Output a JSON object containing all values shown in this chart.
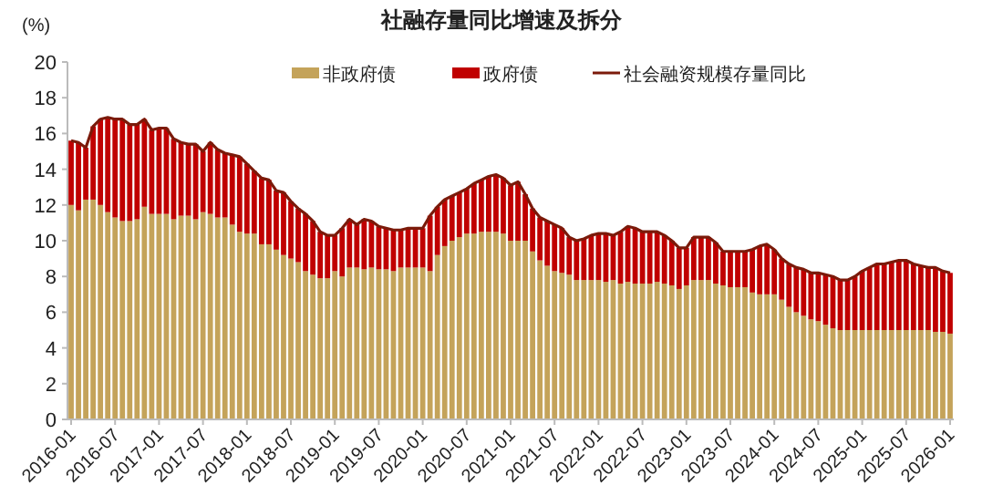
{
  "chart_data": {
    "type": "bar",
    "title": "社融存量同比增速及拆分",
    "ylabel": "(%)",
    "stacked": true,
    "legend": "top",
    "ylim": [
      0,
      20
    ],
    "yticks": [
      0,
      2,
      4,
      6,
      8,
      10,
      12,
      14,
      16,
      18,
      20
    ],
    "categories": [
      "2016-01",
      null,
      null,
      null,
      null,
      null,
      "2016-07",
      null,
      null,
      null,
      null,
      null,
      "2017-01",
      null,
      null,
      null,
      null,
      null,
      "2017-07",
      null,
      null,
      null,
      null,
      null,
      "2018-01",
      null,
      null,
      null,
      null,
      null,
      "2018-07",
      null,
      null,
      null,
      null,
      null,
      "2019-01",
      null,
      null,
      null,
      null,
      null,
      "2019-07",
      null,
      null,
      null,
      null,
      null,
      "2020-01",
      null,
      null,
      null,
      null,
      null,
      "2020-07",
      null,
      null,
      null,
      null,
      null,
      "2021-01",
      null,
      null,
      null,
      null,
      null,
      "2021-07",
      null,
      null,
      null,
      null,
      null,
      "2022-01",
      null,
      null,
      null,
      null,
      null,
      "2022-07",
      null,
      null,
      null,
      null,
      null,
      "2023-01",
      null,
      null,
      null,
      null,
      null,
      "2023-07",
      null,
      null,
      null,
      null,
      null,
      "2024-01",
      null,
      null,
      null,
      null,
      null,
      "2024-07",
      null,
      null,
      null,
      null,
      null,
      "2025-01",
      null,
      null,
      null,
      null,
      null,
      "2025-07",
      null,
      null,
      null,
      null,
      null,
      "2026-01"
    ],
    "series": [
      {
        "name": "非政府债",
        "color": "#c4a35a",
        "values": [
          12.0,
          11.7,
          12.3,
          12.3,
          12.0,
          11.6,
          11.3,
          11.1,
          11.1,
          11.2,
          11.9,
          11.5,
          11.5,
          11.5,
          11.2,
          11.4,
          11.4,
          11.2,
          11.6,
          11.5,
          11.3,
          11.3,
          10.9,
          10.5,
          10.4,
          10.4,
          9.8,
          9.8,
          9.5,
          9.2,
          9.0,
          8.8,
          8.3,
          8.1,
          7.9,
          7.9,
          8.3,
          8.0,
          8.5,
          8.5,
          8.4,
          8.5,
          8.4,
          8.4,
          8.3,
          8.5,
          8.5,
          8.5,
          8.5,
          8.3,
          9.2,
          9.7,
          10.0,
          10.2,
          10.4,
          10.4,
          10.5,
          10.5,
          10.5,
          10.4,
          10.0,
          10.0,
          10.0,
          9.4,
          8.9,
          8.6,
          8.3,
          8.2,
          8.1,
          7.8,
          7.8,
          7.8,
          7.8,
          7.7,
          7.8,
          7.6,
          7.7,
          7.6,
          7.6,
          7.6,
          7.7,
          7.6,
          7.5,
          7.3,
          7.5,
          7.8,
          7.8,
          7.8,
          7.6,
          7.5,
          7.4,
          7.4,
          7.4,
          7.1,
          7.0,
          7.0,
          7.0,
          6.7,
          6.3,
          6.0,
          5.8,
          5.6,
          5.5,
          5.3,
          5.1,
          5.0,
          5.0,
          5.0,
          5.0,
          5.0,
          5.0,
          5.0,
          5.0,
          5.0,
          5.0,
          5.0,
          5.0,
          5.0,
          4.9,
          4.9,
          4.8
        ]
      },
      {
        "name": "政府债",
        "color": "#c00000",
        "values": [
          3.6,
          3.8,
          2.9,
          4.1,
          4.8,
          5.3,
          5.5,
          5.7,
          5.4,
          5.3,
          4.9,
          4.7,
          4.8,
          4.8,
          4.5,
          4.1,
          4.0,
          4.2,
          3.4,
          4.0,
          3.8,
          3.6,
          3.9,
          4.2,
          3.9,
          3.5,
          3.7,
          3.6,
          3.3,
          3.5,
          3.2,
          3.0,
          3.2,
          3.0,
          2.6,
          2.4,
          2.0,
          2.7,
          2.7,
          2.4,
          2.8,
          2.6,
          2.4,
          2.3,
          2.3,
          2.1,
          2.2,
          2.2,
          2.2,
          3.1,
          2.7,
          2.6,
          2.5,
          2.5,
          2.5,
          2.8,
          2.9,
          3.1,
          3.2,
          3.1,
          3.1,
          3.3,
          2.6,
          2.4,
          2.4,
          2.5,
          2.6,
          2.5,
          2.1,
          2.2,
          2.3,
          2.5,
          2.6,
          2.7,
          2.5,
          2.9,
          3.1,
          3.1,
          2.9,
          2.9,
          2.8,
          2.7,
          2.5,
          2.3,
          2.1,
          2.4,
          2.4,
          2.4,
          2.3,
          1.9,
          2.0,
          2.0,
          2.0,
          2.4,
          2.7,
          2.8,
          2.5,
          2.3,
          2.4,
          2.5,
          2.6,
          2.6,
          2.7,
          2.8,
          2.9,
          2.8,
          2.8,
          3.0,
          3.3,
          3.5,
          3.7,
          3.7,
          3.8,
          3.9,
          3.9,
          3.7,
          3.6,
          3.5,
          3.6,
          3.4,
          3.4
        ]
      },
      {
        "name": "社会融资规模存量同比",
        "type": "line",
        "color": "#7b1a0a",
        "values": [
          15.6,
          15.5,
          15.2,
          16.4,
          16.8,
          16.9,
          16.8,
          16.8,
          16.5,
          16.5,
          16.8,
          16.2,
          16.3,
          16.3,
          15.7,
          15.5,
          15.4,
          15.4,
          15.0,
          15.5,
          15.1,
          14.9,
          14.8,
          14.7,
          14.3,
          13.9,
          13.5,
          13.4,
          12.8,
          12.7,
          12.2,
          11.8,
          11.5,
          11.1,
          10.5,
          10.3,
          10.3,
          10.7,
          11.2,
          10.9,
          11.2,
          11.1,
          10.8,
          10.7,
          10.6,
          10.6,
          10.7,
          10.7,
          10.7,
          11.4,
          11.9,
          12.3,
          12.5,
          12.7,
          12.9,
          13.2,
          13.4,
          13.6,
          13.7,
          13.5,
          13.1,
          13.3,
          12.6,
          11.8,
          11.3,
          11.1,
          10.9,
          10.7,
          10.2,
          10.0,
          10.1,
          10.3,
          10.4,
          10.4,
          10.3,
          10.5,
          10.8,
          10.7,
          10.5,
          10.5,
          10.5,
          10.3,
          10.0,
          9.6,
          9.6,
          10.2,
          10.2,
          10.2,
          9.9,
          9.4,
          9.4,
          9.4,
          9.4,
          9.5,
          9.7,
          9.8,
          9.5,
          9.0,
          8.7,
          8.5,
          8.4,
          8.2,
          8.2,
          8.1,
          8.0,
          7.8,
          7.8,
          8.0,
          8.3,
          8.5,
          8.7,
          8.7,
          8.8,
          8.9,
          8.9,
          8.7,
          8.6,
          8.5,
          8.5,
          8.3,
          8.2
        ]
      }
    ]
  }
}
